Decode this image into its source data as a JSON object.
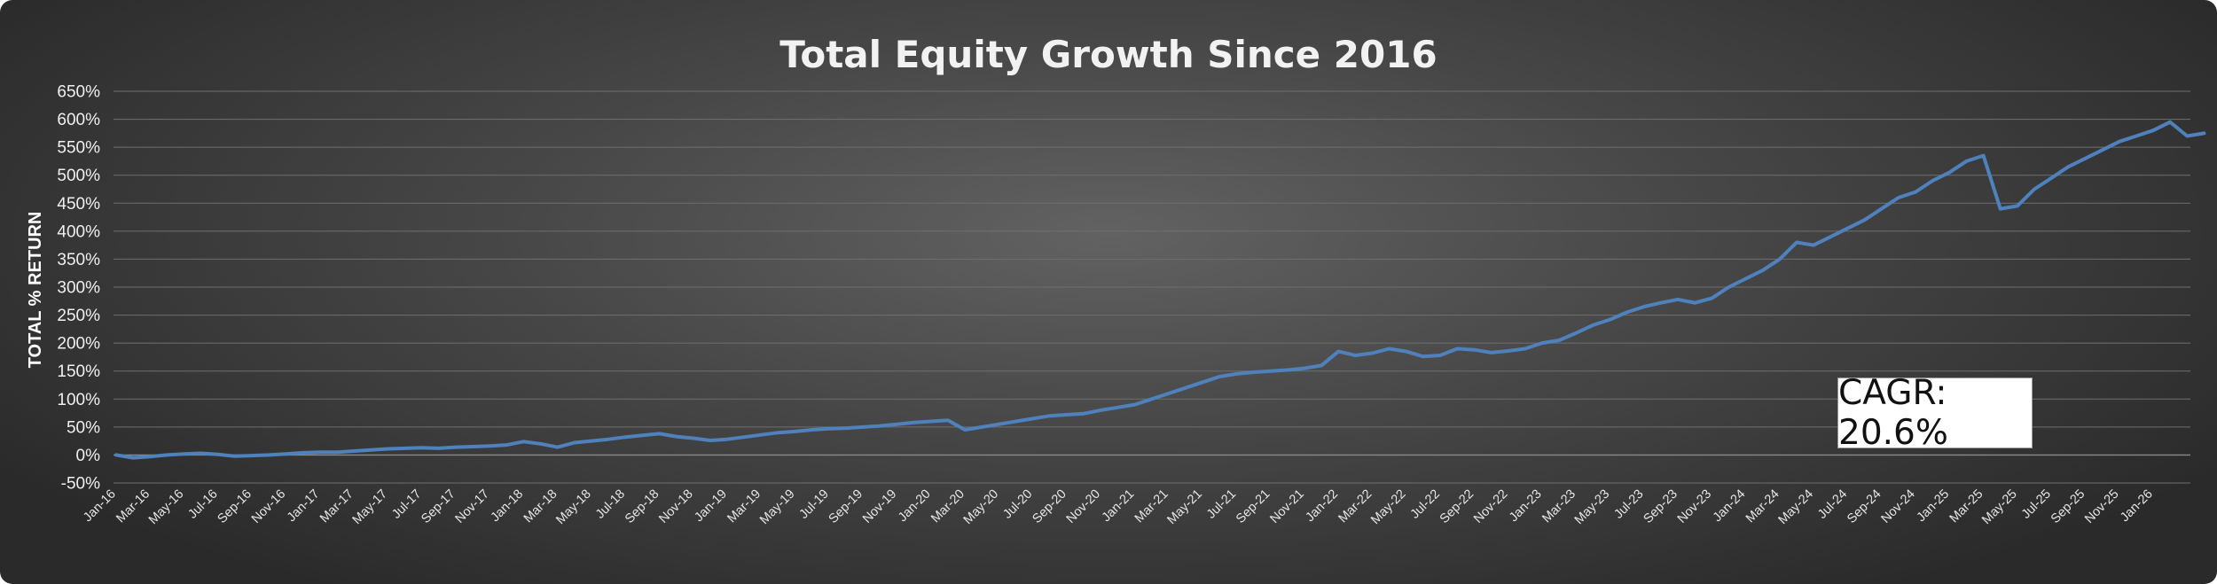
{
  "chart_data": {
    "type": "line",
    "title": "Total Equity Growth Since 2016",
    "xlabel": "",
    "ylabel": "TOTAL % RETURN",
    "ylim": [
      -50,
      650
    ],
    "y_ticks": [
      "-50%",
      "0%",
      "50%",
      "100%",
      "150%",
      "200%",
      "250%",
      "300%",
      "350%",
      "400%",
      "450%",
      "500%",
      "550%",
      "600%",
      "650%"
    ],
    "x_ticks": [
      "Jan-16",
      "Mar-16",
      "May-16",
      "Jul-16",
      "Sep-16",
      "Nov-16",
      "Jan-17",
      "Mar-17",
      "May-17",
      "Jul-17",
      "Sep-17",
      "Nov-17",
      "Jan-18",
      "Mar-18",
      "May-18",
      "Jul-18",
      "Sep-18",
      "Nov-18",
      "Jan-19",
      "Mar-19",
      "May-19",
      "Jul-19",
      "Sep-19",
      "Nov-19",
      "Jan-20",
      "Mar-20",
      "May-20",
      "Jul-20",
      "Sep-20",
      "Nov-20",
      "Jan-21",
      "Mar-21",
      "May-21",
      "Jul-21",
      "Sep-21",
      "Nov-21",
      "Jan-22",
      "Mar-22",
      "May-22",
      "Jul-22",
      "Sep-22",
      "Nov-22",
      "Jan-23",
      "Mar-23",
      "May-23",
      "Jul-23",
      "Sep-23",
      "Nov-23",
      "Jan-24",
      "Mar-24",
      "May-24",
      "Jul-24",
      "Sep-24",
      "Nov-24",
      "Jan-25",
      "Mar-25",
      "May-25",
      "Jul-25",
      "Sep-25",
      "Nov-25",
      "Jan-26"
    ],
    "grid": true,
    "series": [
      {
        "color": "#4f81bd",
        "points": [
          [
            "2016-01-01",
            0
          ],
          [
            "2016-02-01",
            -5
          ],
          [
            "2016-03-01",
            -3
          ],
          [
            "2016-04-01",
            0
          ],
          [
            "2016-05-01",
            2
          ],
          [
            "2016-06-01",
            3
          ],
          [
            "2016-07-01",
            1
          ],
          [
            "2016-08-01",
            -2
          ],
          [
            "2016-09-01",
            -1
          ],
          [
            "2016-10-01",
            0
          ],
          [
            "2016-11-01",
            2
          ],
          [
            "2016-12-01",
            4
          ],
          [
            "2017-01-01",
            5
          ],
          [
            "2017-02-01",
            5
          ],
          [
            "2017-03-01",
            7
          ],
          [
            "2017-04-01",
            9
          ],
          [
            "2017-05-01",
            11
          ],
          [
            "2017-06-01",
            12
          ],
          [
            "2017-07-01",
            13
          ],
          [
            "2017-08-01",
            12
          ],
          [
            "2017-09-01",
            14
          ],
          [
            "2017-10-01",
            15
          ],
          [
            "2017-11-01",
            16
          ],
          [
            "2017-12-01",
            18
          ],
          [
            "2018-01-01",
            24
          ],
          [
            "2018-02-01",
            20
          ],
          [
            "2018-03-01",
            14
          ],
          [
            "2018-04-01",
            22
          ],
          [
            "2018-05-01",
            25
          ],
          [
            "2018-06-01",
            28
          ],
          [
            "2018-07-01",
            32
          ],
          [
            "2018-08-01",
            35
          ],
          [
            "2018-09-01",
            38
          ],
          [
            "2018-10-01",
            33
          ],
          [
            "2018-11-01",
            30
          ],
          [
            "2018-12-01",
            26
          ],
          [
            "2019-01-01",
            28
          ],
          [
            "2019-02-01",
            32
          ],
          [
            "2019-03-01",
            36
          ],
          [
            "2019-04-01",
            40
          ],
          [
            "2019-05-01",
            42
          ],
          [
            "2019-06-01",
            45
          ],
          [
            "2019-07-01",
            47
          ],
          [
            "2019-08-01",
            48
          ],
          [
            "2019-09-01",
            50
          ],
          [
            "2019-10-01",
            52
          ],
          [
            "2019-11-01",
            55
          ],
          [
            "2019-12-01",
            58
          ],
          [
            "2020-01-01",
            60
          ],
          [
            "2020-02-01",
            62
          ],
          [
            "2020-03-01",
            45
          ],
          [
            "2020-04-01",
            50
          ],
          [
            "2020-05-01",
            55
          ],
          [
            "2020-06-01",
            60
          ],
          [
            "2020-07-01",
            65
          ],
          [
            "2020-08-01",
            70
          ],
          [
            "2020-09-01",
            72
          ],
          [
            "2020-10-01",
            74
          ],
          [
            "2020-11-01",
            80
          ],
          [
            "2020-12-01",
            85
          ],
          [
            "2021-01-01",
            90
          ],
          [
            "2021-02-01",
            100
          ],
          [
            "2021-03-01",
            110
          ],
          [
            "2021-04-01",
            120
          ],
          [
            "2021-05-01",
            130
          ],
          [
            "2021-06-01",
            140
          ],
          [
            "2021-07-01",
            145
          ],
          [
            "2021-08-01",
            148
          ],
          [
            "2021-09-01",
            150
          ],
          [
            "2021-10-01",
            152
          ],
          [
            "2021-11-01",
            155
          ],
          [
            "2021-12-01",
            160
          ],
          [
            "2022-01-01",
            185
          ],
          [
            "2022-02-01",
            178
          ],
          [
            "2022-03-01",
            182
          ],
          [
            "2022-04-01",
            190
          ],
          [
            "2022-05-01",
            185
          ],
          [
            "2022-06-01",
            176
          ],
          [
            "2022-07-01",
            178
          ],
          [
            "2022-08-01",
            190
          ],
          [
            "2022-09-01",
            188
          ],
          [
            "2022-10-01",
            183
          ],
          [
            "2022-11-01",
            186
          ],
          [
            "2022-12-01",
            190
          ],
          [
            "2023-01-01",
            200
          ],
          [
            "2023-02-01",
            205
          ],
          [
            "2023-03-01",
            218
          ],
          [
            "2023-04-01",
            232
          ],
          [
            "2023-05-01",
            242
          ],
          [
            "2023-06-01",
            255
          ],
          [
            "2023-07-01",
            265
          ],
          [
            "2023-08-01",
            272
          ],
          [
            "2023-09-01",
            278
          ],
          [
            "2023-10-01",
            272
          ],
          [
            "2023-11-01",
            280
          ],
          [
            "2023-12-01",
            300
          ],
          [
            "2024-01-01",
            315
          ],
          [
            "2024-02-01",
            330
          ],
          [
            "2024-03-01",
            350
          ],
          [
            "2024-04-01",
            380
          ],
          [
            "2024-05-01",
            375
          ],
          [
            "2024-06-01",
            390
          ],
          [
            "2024-07-01",
            405
          ],
          [
            "2024-08-01",
            420
          ],
          [
            "2024-09-01",
            440
          ],
          [
            "2024-10-01",
            460
          ],
          [
            "2024-11-01",
            470
          ],
          [
            "2024-12-01",
            490
          ],
          [
            "2025-01-01",
            505
          ],
          [
            "2025-02-01",
            525
          ],
          [
            "2025-03-01",
            535
          ],
          [
            "2025-04-01",
            440
          ],
          [
            "2025-05-01",
            445
          ],
          [
            "2025-06-01",
            475
          ],
          [
            "2025-07-01",
            495
          ],
          [
            "2025-08-01",
            515
          ],
          [
            "2025-09-01",
            530
          ],
          [
            "2025-10-01",
            545
          ],
          [
            "2025-11-01",
            560
          ],
          [
            "2025-12-01",
            570
          ],
          [
            "2026-01-01",
            580
          ],
          [
            "2026-02-01",
            595
          ],
          [
            "2026-03-01",
            570
          ],
          [
            "2026-04-01",
            575
          ]
        ]
      }
    ],
    "annotation": "CAGR: 20.6%"
  }
}
